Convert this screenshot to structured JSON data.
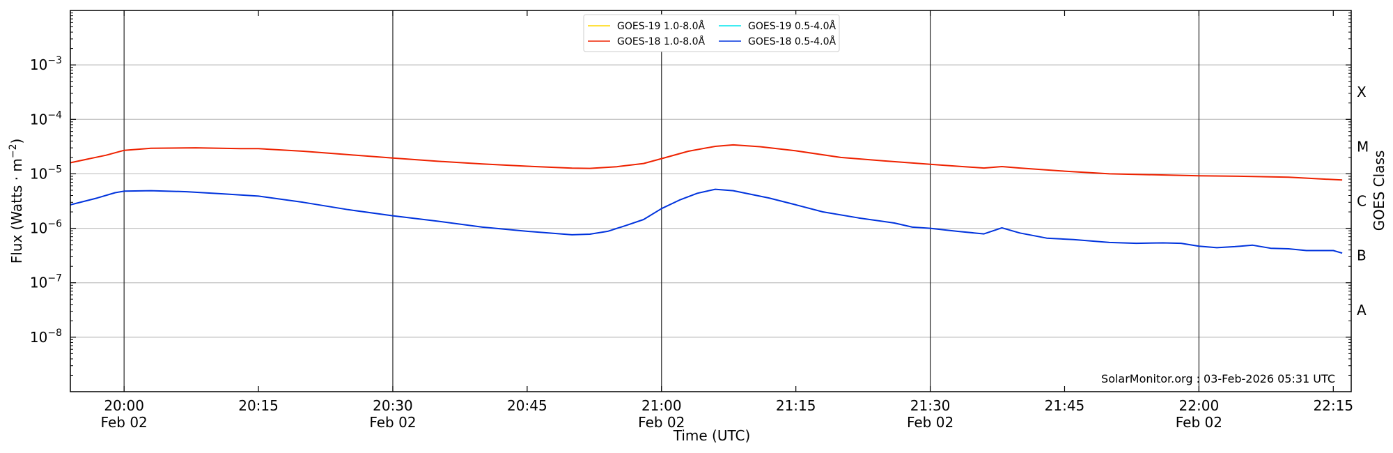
{
  "chart_data": {
    "type": "line",
    "title": "",
    "xlabel": "Time (UTC)",
    "ylabel": "Flux (Watts · m",
    "ylabel_sup": "−2",
    "ylabel_close": ")",
    "y2label": "GOES Class",
    "yscale": "log",
    "ylim": [
      1e-09,
      0.01
    ],
    "xlim": [
      "19:54",
      "22:17"
    ],
    "yticks": [
      {
        "value": 1e-08,
        "base": "10",
        "exp": "−8"
      },
      {
        "value": 1e-07,
        "base": "10",
        "exp": "−7"
      },
      {
        "value": 1e-06,
        "base": "10",
        "exp": "−6"
      },
      {
        "value": 1e-05,
        "base": "10",
        "exp": "−5"
      },
      {
        "value": 0.0001,
        "base": "10",
        "exp": "−4"
      },
      {
        "value": 0.001,
        "base": "10",
        "exp": "−3"
      }
    ],
    "xticks": [
      {
        "time": "20:00",
        "label": "20:00",
        "date": "Feb 02"
      },
      {
        "time": "20:15",
        "label": "20:15",
        "date": ""
      },
      {
        "time": "20:30",
        "label": "20:30",
        "date": "Feb 02"
      },
      {
        "time": "20:45",
        "label": "20:45",
        "date": ""
      },
      {
        "time": "21:00",
        "label": "21:00",
        "date": "Feb 02"
      },
      {
        "time": "21:15",
        "label": "21:15",
        "date": ""
      },
      {
        "time": "21:30",
        "label": "21:30",
        "date": "Feb 02"
      },
      {
        "time": "21:45",
        "label": "21:45",
        "date": ""
      },
      {
        "time": "22:00",
        "label": "22:00",
        "date": "Feb 02"
      },
      {
        "time": "22:15",
        "label": "22:15",
        "date": ""
      }
    ],
    "vertical_lines": [
      "20:00",
      "20:30",
      "21:00",
      "21:30",
      "22:00"
    ],
    "grid": "horizontal",
    "goes_classes": [
      {
        "label": "A",
        "value": 3.16e-08
      },
      {
        "label": "B",
        "value": 3.16e-07
      },
      {
        "label": "C",
        "value": 3.16e-06
      },
      {
        "label": "M",
        "value": 3.16e-05
      },
      {
        "label": "X",
        "value": 0.000316
      }
    ],
    "legend": {
      "placement": "top-center",
      "entries": [
        {
          "label": "GOES-19 1.0-8.0Å",
          "color": "#ffd700"
        },
        {
          "label": "GOES-19 0.5-4.0Å",
          "color": "#00e5ee"
        },
        {
          "label": "GOES-18 1.0-8.0Å",
          "color": "#ee2200"
        },
        {
          "label": "GOES-18 0.5-4.0Å",
          "color": "#0033dd"
        }
      ]
    },
    "series": [
      {
        "name": "GOES-18 1.0-8.0Å",
        "color": "#ee2200",
        "points": [
          [
            "19:54",
            1.6e-05
          ],
          [
            "19:58",
            2.2e-05
          ],
          [
            "20:00",
            2.7e-05
          ],
          [
            "20:03",
            2.95e-05
          ],
          [
            "20:08",
            3e-05
          ],
          [
            "20:13",
            2.9e-05
          ],
          [
            "20:15",
            2.9e-05
          ],
          [
            "20:20",
            2.6e-05
          ],
          [
            "20:25",
            2.25e-05
          ],
          [
            "20:30",
            1.95e-05
          ],
          [
            "20:35",
            1.7e-05
          ],
          [
            "20:40",
            1.52e-05
          ],
          [
            "20:45",
            1.38e-05
          ],
          [
            "20:50",
            1.27e-05
          ],
          [
            "20:52",
            1.26e-05
          ],
          [
            "20:55",
            1.35e-05
          ],
          [
            "20:58",
            1.55e-05
          ],
          [
            "21:00",
            1.9e-05
          ],
          [
            "21:03",
            2.6e-05
          ],
          [
            "21:06",
            3.2e-05
          ],
          [
            "21:08",
            3.4e-05
          ],
          [
            "21:11",
            3.15e-05
          ],
          [
            "21:15",
            2.65e-05
          ],
          [
            "21:20",
            2e-05
          ],
          [
            "21:25",
            1.72e-05
          ],
          [
            "21:30",
            1.5e-05
          ],
          [
            "21:33",
            1.38e-05
          ],
          [
            "21:36",
            1.28e-05
          ],
          [
            "21:38",
            1.36e-05
          ],
          [
            "21:40",
            1.28e-05
          ],
          [
            "21:45",
            1.12e-05
          ],
          [
            "21:50",
            1e-05
          ],
          [
            "21:55",
            9.6e-06
          ],
          [
            "22:00",
            9.2e-06
          ],
          [
            "22:05",
            9e-06
          ],
          [
            "22:10",
            8.7e-06
          ],
          [
            "22:14",
            8e-06
          ],
          [
            "22:16",
            7.7e-06
          ]
        ]
      },
      {
        "name": "GOES-18 0.5-4.0Å",
        "color": "#0033dd",
        "points": [
          [
            "19:54",
            2.7e-06
          ],
          [
            "19:57",
            3.6e-06
          ],
          [
            "19:59",
            4.5e-06
          ],
          [
            "20:00",
            4.8e-06
          ],
          [
            "20:03",
            4.9e-06
          ],
          [
            "20:07",
            4.7e-06
          ],
          [
            "20:11",
            4.3e-06
          ],
          [
            "20:15",
            3.9e-06
          ],
          [
            "20:20",
            3e-06
          ],
          [
            "20:25",
            2.2e-06
          ],
          [
            "20:30",
            1.7e-06
          ],
          [
            "20:35",
            1.35e-06
          ],
          [
            "20:40",
            1.05e-06
          ],
          [
            "20:45",
            8.8e-07
          ],
          [
            "20:50",
            7.6e-07
          ],
          [
            "20:52",
            7.8e-07
          ],
          [
            "20:54",
            8.8e-07
          ],
          [
            "20:56",
            1.12e-06
          ],
          [
            "20:58",
            1.45e-06
          ],
          [
            "21:00",
            2.3e-06
          ],
          [
            "21:02",
            3.3e-06
          ],
          [
            "21:04",
            4.4e-06
          ],
          [
            "21:06",
            5.2e-06
          ],
          [
            "21:08",
            4.9e-06
          ],
          [
            "21:12",
            3.6e-06
          ],
          [
            "21:15",
            2.7e-06
          ],
          [
            "21:18",
            2e-06
          ],
          [
            "21:22",
            1.55e-06
          ],
          [
            "21:26",
            1.25e-06
          ],
          [
            "21:28",
            1.05e-06
          ],
          [
            "21:30",
            1e-06
          ],
          [
            "21:33",
            8.8e-07
          ],
          [
            "21:36",
            7.9e-07
          ],
          [
            "21:38",
            1.02e-06
          ],
          [
            "21:40",
            8.2e-07
          ],
          [
            "21:43",
            6.6e-07
          ],
          [
            "21:46",
            6.2e-07
          ],
          [
            "21:50",
            5.5e-07
          ],
          [
            "21:53",
            5.3e-07
          ],
          [
            "21:56",
            5.4e-07
          ],
          [
            "21:58",
            5.3e-07
          ],
          [
            "22:00",
            4.7e-07
          ],
          [
            "22:02",
            4.4e-07
          ],
          [
            "22:04",
            4.6e-07
          ],
          [
            "22:06",
            4.9e-07
          ],
          [
            "22:08",
            4.3e-07
          ],
          [
            "22:10",
            4.2e-07
          ],
          [
            "22:12",
            3.9e-07
          ],
          [
            "22:15",
            3.9e-07
          ],
          [
            "22:16",
            3.5e-07
          ]
        ]
      }
    ],
    "annotation": "SolarMonitor.org : 03-Feb-2026 05:31 UTC"
  }
}
